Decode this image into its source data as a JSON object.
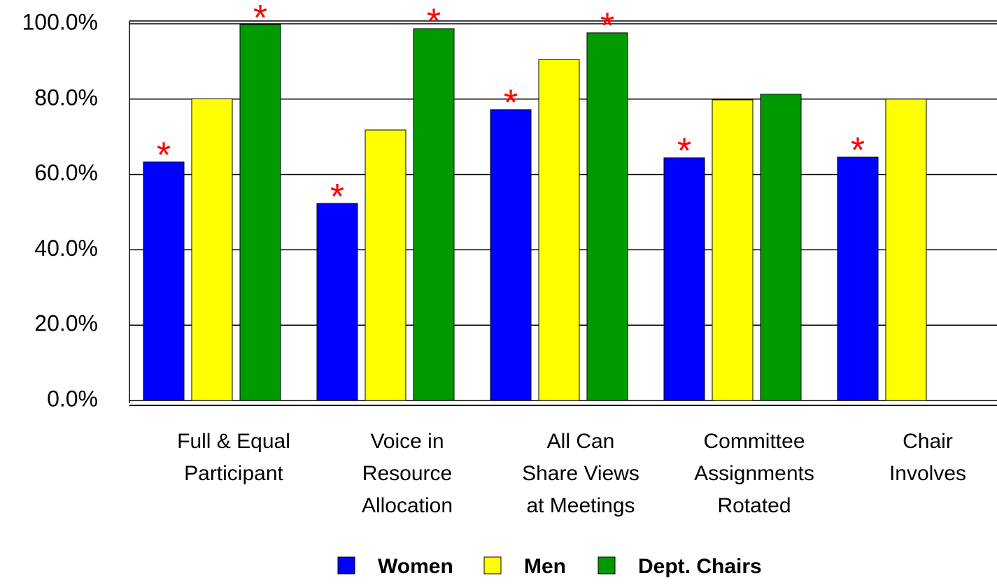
{
  "chart_data": {
    "type": "bar",
    "categories": [
      "Full & Equal\nParticipant",
      "Voice in\nResource\nAllocation",
      "All Can\nShare Views\nat Meetings",
      "Committee\nAssignments\nRotated",
      "Chair\nInvolves"
    ],
    "series": [
      {
        "name": "Women",
        "color": "#0000ff",
        "values": [
          63.3,
          52.3,
          77.2,
          64.4,
          64.6
        ],
        "markers": [
          "*",
          "*",
          "*",
          "*",
          "*"
        ]
      },
      {
        "name": "Men",
        "color": "#ffff00",
        "values": [
          80.1,
          71.8,
          90.5,
          79.8,
          80.0
        ],
        "markers": [
          null,
          null,
          null,
          null,
          null
        ]
      },
      {
        "name": "Dept. Chairs",
        "color": "#009900",
        "values": [
          99.8,
          98.7,
          97.6,
          81.3,
          null
        ],
        "markers": [
          "*",
          "*",
          "*",
          null,
          null
        ]
      }
    ],
    "ylim": [
      0,
      100
    ],
    "yticks": [
      {
        "value": 0,
        "label": "0.0%"
      },
      {
        "value": 20,
        "label": "20.0%"
      },
      {
        "value": 40,
        "label": "40.0%"
      },
      {
        "value": 60,
        "label": "60.0%"
      },
      {
        "value": 80,
        "label": "80.0%"
      },
      {
        "value": 100,
        "label": "100.0%"
      }
    ],
    "grid": true,
    "legend": "bottom",
    "marker_color": "#ff0000"
  }
}
